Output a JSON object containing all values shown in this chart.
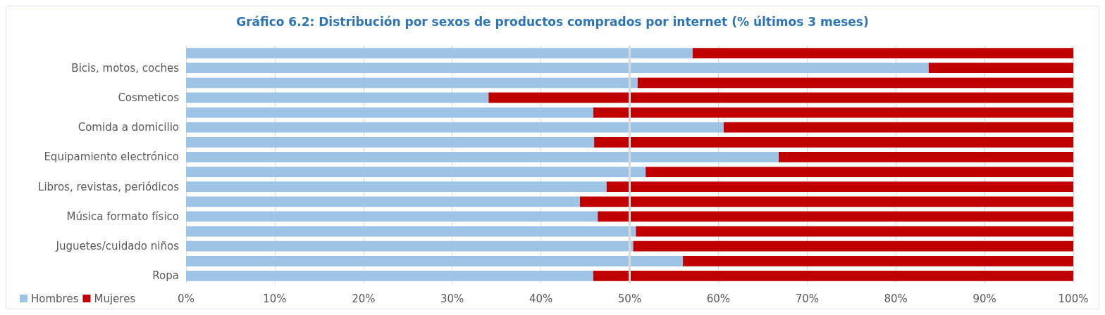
{
  "chart_data": {
    "type": "bar",
    "orientation": "horizontal",
    "stacked": true,
    "title": "Gráfico 6.2: Distribución por sexos de productos comprados por internet (% últimos 3 meses)",
    "categories": [
      null,
      "Bicis, motos, coches",
      null,
      "Cosmeticos",
      null,
      "Comida a domicilio",
      null,
      "Equipamiento electrónico",
      null,
      "Libros, revistas, periódicos",
      null,
      "Música formato físico",
      null,
      "Juguetes/cuidado niños",
      null,
      "Ropa"
    ],
    "series": [
      {
        "name": "Hombres",
        "color": "#9dc3e6",
        "values": [
          57.1,
          83.7,
          50.9,
          34.1,
          45.9,
          60.6,
          46.0,
          66.8,
          51.8,
          47.4,
          44.4,
          46.4,
          50.7,
          50.4,
          56.0,
          45.9
        ]
      },
      {
        "name": "Mujeres",
        "color": "#c00000",
        "values": [
          42.9,
          16.3,
          49.1,
          65.9,
          54.1,
          39.4,
          54.0,
          33.2,
          48.2,
          52.6,
          55.6,
          53.6,
          49.3,
          49.6,
          44.0,
          54.1
        ]
      }
    ],
    "xlim": [
      0,
      100
    ],
    "xticks": [
      {
        "value": 0,
        "label": "0%"
      },
      {
        "value": 10,
        "label": "10%"
      },
      {
        "value": 20,
        "label": "20%"
      },
      {
        "value": 30,
        "label": "30%"
      },
      {
        "value": 40,
        "label": "40%"
      },
      {
        "value": 50,
        "label": "50%"
      },
      {
        "value": 60,
        "label": "60%"
      },
      {
        "value": 70,
        "label": "70%"
      },
      {
        "value": 80,
        "label": "80%"
      },
      {
        "value": 90,
        "label": "90%"
      },
      {
        "value": 100,
        "label": "100%"
      }
    ],
    "ref_lines": [
      {
        "axis": "x",
        "value": 50,
        "color": "#d9d9d9"
      }
    ],
    "grid": "x",
    "legend": "bottom left"
  }
}
